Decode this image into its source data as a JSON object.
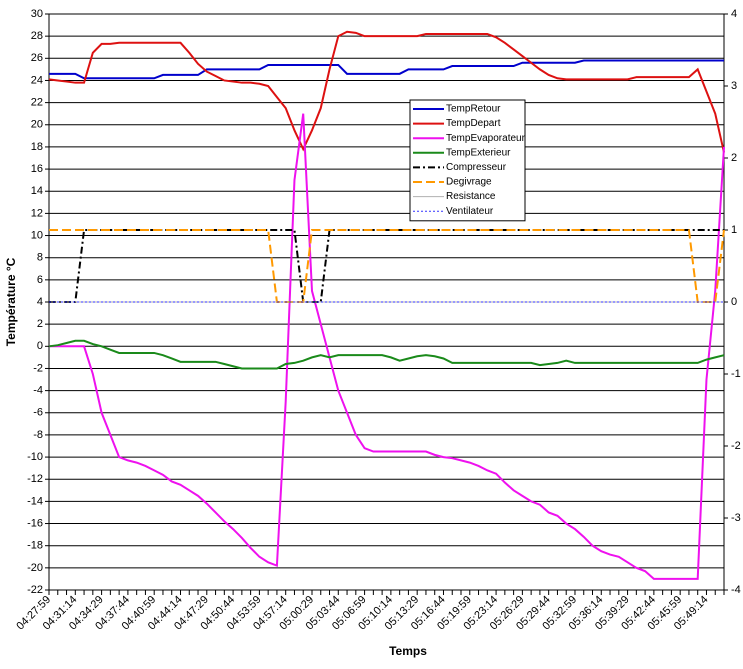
{
  "chart_data": {
    "type": "line",
    "y_label": "Température °C",
    "x_label": "Temps",
    "categories": [
      "04:27:59",
      null,
      null,
      "04:31:14",
      null,
      null,
      "04:34:29",
      null,
      null,
      "04:37:44",
      null,
      null,
      "04:40:59",
      null,
      null,
      "04:44:14",
      null,
      null,
      "04:47:29",
      null,
      null,
      "04:50:44",
      null,
      null,
      "04:53:59",
      null,
      null,
      "04:57:14",
      null,
      null,
      "05:00:29",
      null,
      null,
      "05:03:44",
      null,
      null,
      "05:06:59",
      null,
      null,
      "05:10:14",
      null,
      null,
      "05:13:29",
      null,
      null,
      "05:16:44",
      null,
      null,
      "05:19:59",
      null,
      null,
      "05:23:14",
      null,
      null,
      "05:26:29",
      null,
      null,
      "05:29:44",
      null,
      null,
      "05:32:59",
      null,
      null,
      "05:36:14",
      null,
      null,
      "05:39:29",
      null,
      null,
      "05:42:44",
      null,
      null,
      "05:45:59",
      null,
      null,
      "05:49:14",
      null,
      null
    ],
    "ylim": [
      -22,
      30
    ],
    "yticks": [
      -22,
      -20,
      -18,
      -16,
      -14,
      -12,
      -10,
      -8,
      -6,
      -4,
      -2,
      0,
      2,
      4,
      6,
      8,
      10,
      12,
      14,
      16,
      18,
      20,
      22,
      24,
      26,
      28,
      30
    ],
    "y2lim": [
      -4,
      4
    ],
    "y2ticks": [
      -4,
      -3,
      -2,
      -1,
      0,
      1,
      2,
      3,
      4
    ],
    "grid": true,
    "series": [
      {
        "name": "TempRetour",
        "color": "#0000cc",
        "values": [
          24.6,
          24.6,
          24.6,
          24.6,
          24.2,
          24.2,
          24.2,
          24.2,
          24.2,
          24.2,
          24.2,
          24.2,
          24.2,
          24.5,
          24.5,
          24.5,
          24.5,
          24.5,
          25.0,
          25.0,
          25.0,
          25.0,
          25.0,
          25.0,
          25.0,
          25.4,
          25.4,
          25.4,
          25.4,
          25.4,
          25.4,
          25.4,
          25.4,
          25.4,
          24.6,
          24.6,
          24.6,
          24.6,
          24.6,
          24.6,
          24.6,
          25.0,
          25.0,
          25.0,
          25.0,
          25.0,
          25.3,
          25.3,
          25.3,
          25.3,
          25.3,
          25.3,
          25.3,
          25.3,
          25.6,
          25.6,
          25.6,
          25.6,
          25.6,
          25.6,
          25.6,
          25.8,
          25.8,
          25.8,
          25.8,
          25.8,
          25.8,
          25.8,
          25.8,
          25.8,
          25.8,
          25.8,
          25.8,
          25.8,
          25.8,
          25.8,
          25.8,
          25.8
        ]
      },
      {
        "name": "TempDepart",
        "color": "#dd1111",
        "values": [
          24.1,
          24.0,
          23.9,
          23.8,
          23.8,
          26.5,
          27.3,
          27.3,
          27.4,
          27.4,
          27.4,
          27.4,
          27.4,
          27.4,
          27.4,
          27.4,
          26.5,
          25.5,
          24.8,
          24.4,
          24.0,
          23.9,
          23.8,
          23.8,
          23.7,
          23.5,
          22.5,
          21.5,
          19.5,
          17.8,
          19.5,
          21.5,
          25,
          28,
          28.4,
          28.3,
          28.0,
          28.0,
          28.0,
          28.0,
          28.0,
          28.0,
          28.0,
          28.2,
          28.2,
          28.2,
          28.2,
          28.2,
          28.2,
          28.2,
          28.2,
          27.9,
          27.4,
          26.8,
          26.2,
          25.6,
          25.0,
          24.5,
          24.2,
          24.1,
          24.1,
          24.1,
          24.1,
          24.1,
          24.1,
          24.1,
          24.1,
          24.3,
          24.3,
          24.3,
          24.3,
          24.3,
          24.3,
          24.3,
          25.0,
          23.0,
          21.0,
          17.5
        ]
      },
      {
        "name": "TempEvaporateur",
        "color": "#ee11ee",
        "values": [
          0,
          0,
          0,
          0,
          0,
          -2.5,
          -6,
          -8,
          -10,
          -10.3,
          -10.5,
          -10.8,
          -11.2,
          -11.6,
          -12.2,
          -12.5,
          -13.0,
          -13.5,
          -14.2,
          -15,
          -15.8,
          -16.5,
          -17.3,
          -18.2,
          -19,
          -19.5,
          -19.8,
          -5,
          15,
          21,
          5,
          2,
          -1,
          -4,
          -6,
          -8,
          -9.2,
          -9.5,
          -9.5,
          -9.5,
          -9.5,
          -9.5,
          -9.5,
          -9.5,
          -9.8,
          -10,
          -10.1,
          -10.3,
          -10.5,
          -10.8,
          -11.2,
          -11.5,
          -12.3,
          -13,
          -13.5,
          -14,
          -14.3,
          -15,
          -15.3,
          -16,
          -16.5,
          -17.2,
          -18,
          -18.5,
          -18.8,
          -19,
          -19.5,
          -20,
          -20.3,
          -21,
          -21,
          -21,
          -21,
          -21,
          -21,
          -3,
          5,
          18
        ]
      },
      {
        "name": "TempExterieur",
        "color": "#1a8a1a",
        "values": [
          0,
          0.1,
          0.3,
          0.5,
          0.5,
          0.2,
          0,
          -0.3,
          -0.6,
          -0.6,
          -0.6,
          -0.6,
          -0.6,
          -0.8,
          -1.1,
          -1.4,
          -1.4,
          -1.4,
          -1.4,
          -1.4,
          -1.6,
          -1.8,
          -2.0,
          -2.0,
          -2.0,
          -2.0,
          -2.0,
          -1.6,
          -1.5,
          -1.3,
          -1.0,
          -0.8,
          -1.0,
          -0.8,
          -0.8,
          -0.8,
          -0.8,
          -0.8,
          -0.8,
          -1.0,
          -1.3,
          -1.1,
          -0.9,
          -0.8,
          -0.9,
          -1.1,
          -1.5,
          -1.5,
          -1.5,
          -1.5,
          -1.5,
          -1.5,
          -1.5,
          -1.5,
          -1.5,
          -1.5,
          -1.7,
          -1.6,
          -1.5,
          -1.3,
          -1.5,
          -1.5,
          -1.5,
          -1.5,
          -1.5,
          -1.5,
          -1.5,
          -1.5,
          -1.5,
          -1.5,
          -1.5,
          -1.5,
          -1.5,
          -1.5,
          -1.5,
          -1.2,
          -1.0,
          -0.8
        ]
      },
      {
        "name": "Compresseur",
        "color": "#000000",
        "axis": "y2",
        "dash": "7,3,2,3",
        "values": [
          0,
          0,
          0,
          0,
          1,
          1,
          1,
          1,
          1,
          1,
          1,
          1,
          1,
          1,
          1,
          1,
          1,
          1,
          1,
          1,
          1,
          1,
          1,
          1,
          1,
          1,
          1,
          1,
          1,
          0,
          0,
          0,
          1,
          1,
          1,
          1,
          1,
          1,
          1,
          1,
          1,
          1,
          1,
          1,
          1,
          1,
          1,
          1,
          1,
          1,
          1,
          1,
          1,
          1,
          1,
          1,
          1,
          1,
          1,
          1,
          1,
          1,
          1,
          1,
          1,
          1,
          1,
          1,
          1,
          1,
          1,
          1,
          1,
          1,
          1,
          1,
          1,
          1
        ]
      },
      {
        "name": "Degivrage",
        "color": "#ff9900",
        "axis": "y2",
        "dash": "9,4",
        "values": [
          1,
          1,
          1,
          1,
          1,
          1,
          1,
          1,
          1,
          1,
          1,
          1,
          1,
          1,
          1,
          1,
          1,
          1,
          1,
          1,
          1,
          1,
          1,
          1,
          1,
          1,
          0,
          0,
          0,
          0,
          1,
          1,
          1,
          1,
          1,
          1,
          1,
          1,
          1,
          1,
          1,
          1,
          1,
          1,
          1,
          1,
          1,
          1,
          1,
          1,
          1,
          1,
          1,
          1,
          1,
          1,
          1,
          1,
          1,
          1,
          1,
          1,
          1,
          1,
          1,
          1,
          1,
          1,
          1,
          1,
          1,
          1,
          1,
          1,
          0,
          0,
          0,
          1
        ]
      },
      {
        "name": "Resistance",
        "color": "#b0b0b0",
        "axis": "y2",
        "values": [
          0,
          0,
          0,
          0,
          0,
          0,
          0,
          0,
          0,
          0,
          0,
          0,
          0,
          0,
          0,
          0,
          0,
          0,
          0,
          0,
          0,
          0,
          0,
          0,
          0,
          0,
          0,
          0,
          0,
          0,
          0,
          0,
          0,
          0,
          0,
          0,
          0,
          0,
          0,
          0,
          0,
          0,
          0,
          0,
          0,
          0,
          0,
          0,
          0,
          0,
          0,
          0,
          0,
          0,
          0,
          0,
          0,
          0,
          0,
          0,
          0,
          0,
          0,
          0,
          0,
          0,
          0,
          0,
          0,
          0,
          0,
          0,
          0,
          0,
          0,
          0,
          0,
          0
        ]
      },
      {
        "name": "Ventilateur",
        "color": "#3333ff",
        "axis": "y2",
        "dash": "2,2",
        "values": [
          0,
          0,
          0,
          0,
          0,
          0,
          0,
          0,
          0,
          0,
          0,
          0,
          0,
          0,
          0,
          0,
          0,
          0,
          0,
          0,
          0,
          0,
          0,
          0,
          0,
          0,
          0,
          0,
          0,
          0,
          0,
          0,
          0,
          0,
          0,
          0,
          0,
          0,
          0,
          0,
          0,
          0,
          0,
          0,
          0,
          0,
          0,
          0,
          0,
          0,
          0,
          0,
          0,
          0,
          0,
          0,
          0,
          0,
          0,
          0,
          0,
          0,
          0,
          0,
          0,
          0,
          0,
          0,
          0,
          0,
          0,
          0,
          0,
          0,
          0,
          0,
          0,
          0
        ]
      }
    ]
  }
}
